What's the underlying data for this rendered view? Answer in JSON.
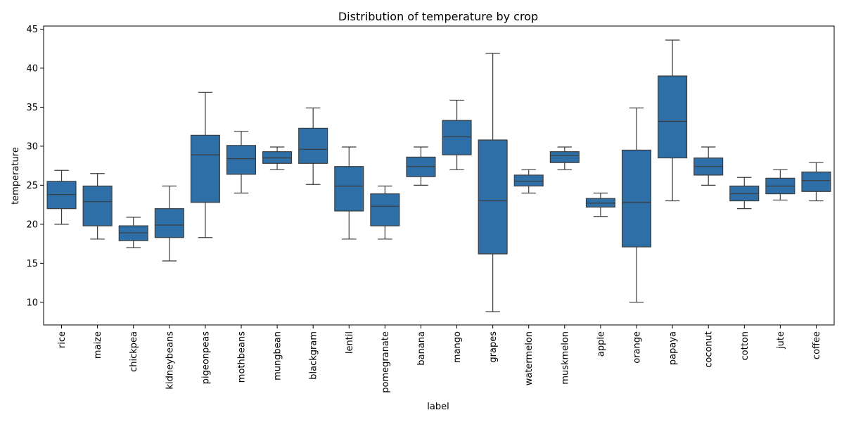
{
  "chart_data": {
    "type": "box",
    "title": "Distribution of temperature by crop",
    "xlabel": "label",
    "ylabel": "temperature",
    "ylim": [
      7.1,
      45.4
    ],
    "yticks": [
      10,
      15,
      20,
      25,
      30,
      35,
      40,
      45
    ],
    "box_color": "#2e6fa7",
    "line_color": "#3c3c3c",
    "categories": [
      "rice",
      "maize",
      "chickpea",
      "kidneybeans",
      "pigeonpeas",
      "mothbeans",
      "mungbean",
      "blackgram",
      "lentil",
      "pomegranate",
      "banana",
      "mango",
      "grapes",
      "watermelon",
      "muskmelon",
      "apple",
      "orange",
      "papaya",
      "coconut",
      "cotton",
      "jute",
      "coffee"
    ],
    "boxes": [
      {
        "label": "rice",
        "whislo": 20.0,
        "q1": 22.0,
        "med": 23.8,
        "q3": 25.5,
        "whishi": 26.9
      },
      {
        "label": "maize",
        "whislo": 18.1,
        "q1": 19.8,
        "med": 22.9,
        "q3": 24.9,
        "whishi": 26.5
      },
      {
        "label": "chickpea",
        "whislo": 17.0,
        "q1": 17.9,
        "med": 18.9,
        "q3": 19.8,
        "whishi": 20.9
      },
      {
        "label": "kidneybeans",
        "whislo": 15.3,
        "q1": 18.3,
        "med": 19.9,
        "q3": 22.0,
        "whishi": 24.9
      },
      {
        "label": "pigeonpeas",
        "whislo": 18.3,
        "q1": 22.8,
        "med": 28.9,
        "q3": 31.4,
        "whishi": 36.9
      },
      {
        "label": "mothbeans",
        "whislo": 24.0,
        "q1": 26.4,
        "med": 28.4,
        "q3": 30.1,
        "whishi": 31.9
      },
      {
        "label": "mungbean",
        "whislo": 27.0,
        "q1": 27.8,
        "med": 28.5,
        "q3": 29.3,
        "whishi": 29.9
      },
      {
        "label": "blackgram",
        "whislo": 25.1,
        "q1": 27.8,
        "med": 29.6,
        "q3": 32.3,
        "whishi": 34.9
      },
      {
        "label": "lentil",
        "whislo": 18.1,
        "q1": 21.7,
        "med": 24.9,
        "q3": 27.4,
        "whishi": 29.9
      },
      {
        "label": "pomegranate",
        "whislo": 18.1,
        "q1": 19.8,
        "med": 22.3,
        "q3": 23.9,
        "whishi": 24.9
      },
      {
        "label": "banana",
        "whislo": 25.0,
        "q1": 26.1,
        "med": 27.4,
        "q3": 28.6,
        "whishi": 29.9
      },
      {
        "label": "mango",
        "whislo": 27.0,
        "q1": 28.9,
        "med": 31.2,
        "q3": 33.3,
        "whishi": 35.9
      },
      {
        "label": "grapes",
        "whislo": 8.8,
        "q1": 16.2,
        "med": 23.0,
        "q3": 30.8,
        "whishi": 41.9
      },
      {
        "label": "watermelon",
        "whislo": 24.0,
        "q1": 24.9,
        "med": 25.5,
        "q3": 26.3,
        "whishi": 27.0
      },
      {
        "label": "muskmelon",
        "whislo": 27.0,
        "q1": 27.9,
        "med": 28.8,
        "q3": 29.3,
        "whishi": 29.9
      },
      {
        "label": "apple",
        "whislo": 21.0,
        "q1": 22.2,
        "med": 22.7,
        "q3": 23.3,
        "whishi": 24.0
      },
      {
        "label": "orange",
        "whislo": 10.0,
        "q1": 17.1,
        "med": 22.8,
        "q3": 29.5,
        "whishi": 34.9
      },
      {
        "label": "papaya",
        "whislo": 23.0,
        "q1": 28.5,
        "med": 33.2,
        "q3": 39.0,
        "whishi": 43.6
      },
      {
        "label": "coconut",
        "whislo": 25.0,
        "q1": 26.3,
        "med": 27.4,
        "q3": 28.5,
        "whishi": 29.9
      },
      {
        "label": "cotton",
        "whislo": 22.0,
        "q1": 23.0,
        "med": 23.9,
        "q3": 24.9,
        "whishi": 26.0
      },
      {
        "label": "jute",
        "whislo": 23.1,
        "q1": 23.9,
        "med": 24.9,
        "q3": 25.9,
        "whishi": 27.0
      },
      {
        "label": "coffee",
        "whislo": 23.0,
        "q1": 24.2,
        "med": 25.6,
        "q3": 26.7,
        "whishi": 27.9
      }
    ]
  }
}
